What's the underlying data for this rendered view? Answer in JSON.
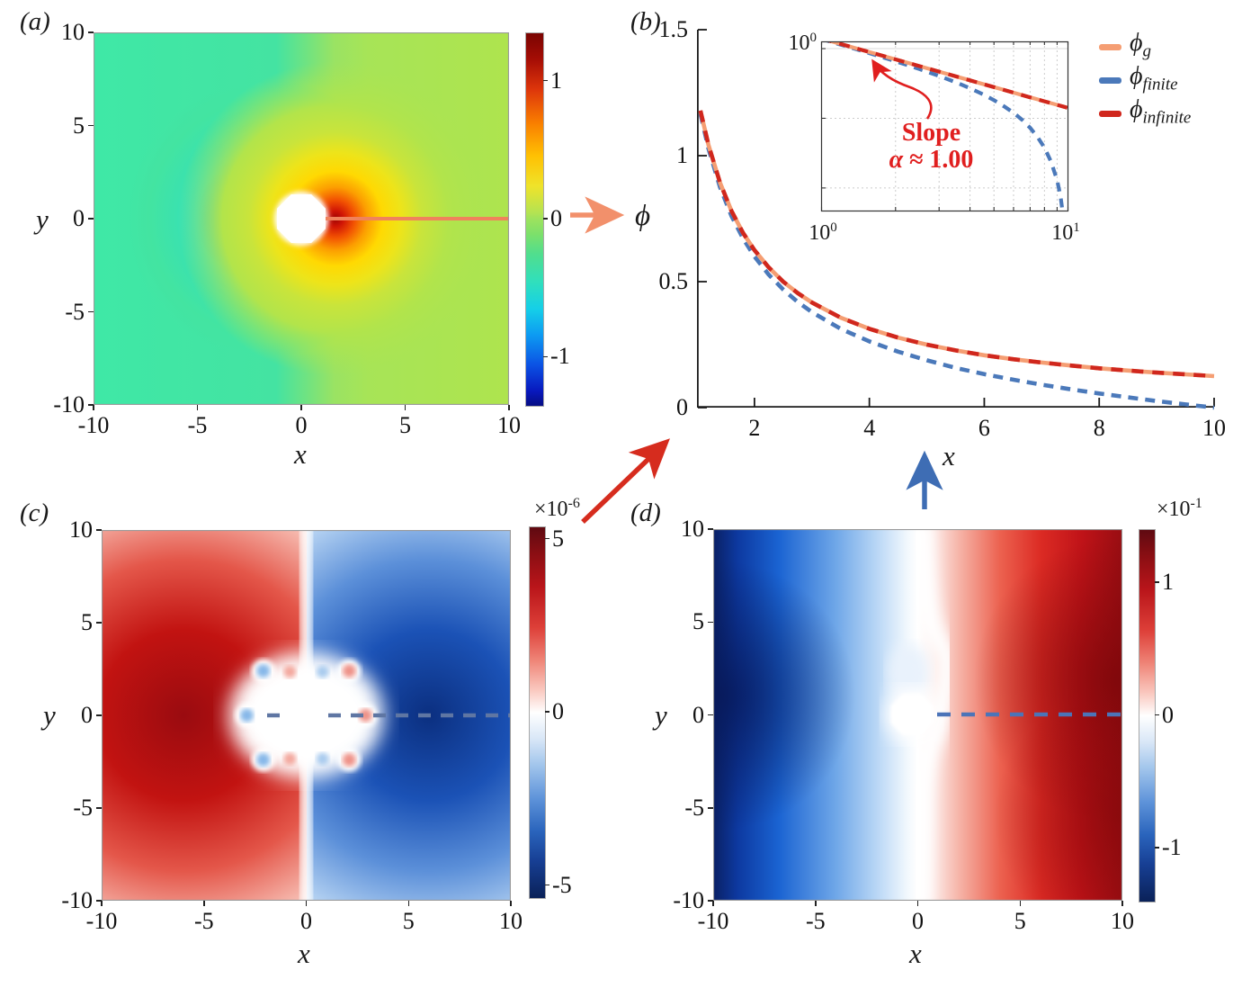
{
  "figure": {
    "arrows": [
      {
        "name": "colorbar-a-to-phi-b",
        "color": "#F2906B",
        "meaning": "profile along y=0 of panel (a) plotted as phi in panel (b)"
      },
      {
        "name": "panel-c-to-b",
        "color": "#D62C1E",
        "meaning": "dashed sample line of panel (c) relates to phi_infinite"
      },
      {
        "name": "panel-d-to-b",
        "color": "#3E6DB4",
        "meaning": "dashed sample line of panel (d) relates to phi_finite"
      },
      {
        "name": "slope-callout",
        "color": "#E01F1F",
        "meaning": "curved arrow pointing at power-law line in inset"
      }
    ]
  },
  "chart_data": [
    {
      "id": "a",
      "type": "heatmap",
      "panel_label": "(a)",
      "xlabel": "x",
      "ylabel": "y",
      "xlim": [
        -10,
        10
      ],
      "ylim": [
        -10,
        10
      ],
      "x_ticks": [
        -10,
        -5,
        0,
        5,
        10
      ],
      "y_ticks": [
        10,
        5,
        0,
        -5,
        -10
      ],
      "colormap": "jet",
      "colorbar_ticks": [
        1,
        0,
        -1
      ],
      "colorbar_lim": [
        -1.35,
        1.35
      ],
      "features": {
        "obstacle": "white octagon at origin, radius ~1.2",
        "sample_line": {
          "style": "solid",
          "color": "#F0825C",
          "y": 0,
          "x_from": 1,
          "x_to": 10
        },
        "field": "dipole-like potential: dark-blue negative lobe left of obstacle, red/yellow positive lobe right, green ~0 far field"
      }
    },
    {
      "id": "b",
      "type": "line",
      "panel_label": "(b)",
      "xlabel": "x",
      "ylabel": "ϕ",
      "xlim": [
        1,
        10
      ],
      "ylim": [
        0,
        1.5
      ],
      "x_ticks": [
        2,
        4,
        6,
        8,
        10
      ],
      "y_ticks": [
        0,
        0.5,
        1,
        1.5
      ],
      "grid": false,
      "legend_position": "top-right",
      "legend": [
        {
          "main": "ϕ",
          "sub": "g"
        },
        {
          "main": "ϕ",
          "sub": "finite"
        },
        {
          "main": "ϕ",
          "sub": "infinite"
        }
      ],
      "annotation": {
        "line1": "Slope",
        "alpha": "α",
        "approx": "≈ 1.00",
        "color": "#E01F1F"
      },
      "series": [
        {
          "name": "phi_g",
          "color": "#F59E73",
          "style": "solid",
          "x": [
            1.06,
            1.2,
            1.4,
            1.6,
            1.8,
            2,
            2.25,
            2.5,
            2.75,
            3,
            3.5,
            4,
            4.5,
            5,
            5.5,
            6,
            6.5,
            7,
            7.5,
            8,
            8.5,
            9,
            9.5,
            10
          ],
          "y": [
            1.179,
            1.042,
            0.893,
            0.781,
            0.694,
            0.625,
            0.556,
            0.5,
            0.455,
            0.417,
            0.357,
            0.313,
            0.278,
            0.25,
            0.227,
            0.208,
            0.192,
            0.179,
            0.167,
            0.156,
            0.147,
            0.139,
            0.132,
            0.125
          ]
        },
        {
          "name": "phi_finite",
          "color": "#4B79BA",
          "style": "dashed",
          "x": [
            1.06,
            1.2,
            1.4,
            1.6,
            1.8,
            2,
            2.25,
            2.5,
            2.75,
            3,
            3.5,
            4,
            4.5,
            5,
            5.5,
            6,
            6.5,
            7,
            7.5,
            8,
            8.5,
            9,
            9.5,
            10
          ],
          "y": [
            1.166,
            1.027,
            0.875,
            0.761,
            0.672,
            0.6,
            0.527,
            0.469,
            0.42,
            0.379,
            0.313,
            0.263,
            0.222,
            0.188,
            0.158,
            0.133,
            0.111,
            0.091,
            0.073,
            0.056,
            0.041,
            0.026,
            0.013,
            0.0
          ]
        },
        {
          "name": "phi_infinite",
          "color": "#D0271D",
          "style": "dashed",
          "x": [
            1.06,
            1.2,
            1.4,
            1.6,
            1.8,
            2,
            2.25,
            2.5,
            2.75,
            3,
            3.5,
            4,
            4.5,
            5,
            5.5,
            6,
            6.5,
            7,
            7.5,
            8,
            8.5,
            9,
            9.5,
            10
          ],
          "y": [
            1.179,
            1.042,
            0.893,
            0.781,
            0.694,
            0.625,
            0.556,
            0.5,
            0.455,
            0.417,
            0.357,
            0.313,
            0.278,
            0.25,
            0.227,
            0.208,
            0.192,
            0.179,
            0.167,
            0.156,
            0.147,
            0.139,
            0.132,
            0.125
          ]
        }
      ],
      "inset": {
        "type": "line",
        "x_scale": "log",
        "y_scale": "log",
        "xlim": [
          1,
          10
        ],
        "ylim": [
          0.0046,
          1.27
        ],
        "grid": true,
        "x_tick_labels": [
          {
            "base": "10",
            "exp": "0"
          },
          {
            "base": "10",
            "exp": "1"
          }
        ],
        "y_tick_labels": [
          {
            "base": "10",
            "exp": "0"
          }
        ],
        "series": [
          {
            "name": "phi_g",
            "color": "#F59E73",
            "style": "solid",
            "x": [
              1,
              1.5,
              2,
              2.5,
              3,
              3.5,
              4,
              4.5,
              5,
              5.5,
              6,
              6.5,
              7,
              7.5,
              8,
              8.5,
              9,
              9.3,
              9.6,
              9.8,
              9.9
            ],
            "y": [
              1.4,
              0.933,
              0.7,
              0.56,
              0.467,
              0.4,
              0.35,
              0.311,
              0.28,
              0.255,
              0.233,
              0.215,
              0.2,
              0.187,
              0.175,
              0.165,
              0.156,
              0.151,
              0.146,
              0.143,
              0.141
            ]
          },
          {
            "name": "phi_finite",
            "color": "#4B79BA",
            "style": "dashed",
            "x": [
              1,
              1.5,
              2,
              2.5,
              3,
              3.5,
              4,
              4.5,
              5,
              5.5,
              6,
              6.5,
              7,
              7.5,
              8,
              8.5,
              9,
              9.3,
              9.6,
              9.8,
              9.9
            ],
            "y": [
              1.379,
              0.902,
              0.658,
              0.508,
              0.405,
              0.329,
              0.27,
              0.222,
              0.182,
              0.148,
              0.12,
              0.095,
              0.073,
              0.054,
              0.038,
              0.024,
              0.013,
              0.0075,
              0.0032,
              0.0011,
              0.0004
            ]
          },
          {
            "name": "phi_infinite",
            "color": "#D0271D",
            "style": "dashed",
            "x": [
              1,
              1.5,
              2,
              2.5,
              3,
              3.5,
              4,
              4.5,
              5,
              5.5,
              6,
              6.5,
              7,
              7.5,
              8,
              8.5,
              9,
              9.3,
              9.6,
              9.8,
              9.9
            ],
            "y": [
              1.4,
              0.933,
              0.7,
              0.56,
              0.467,
              0.4,
              0.35,
              0.311,
              0.28,
              0.255,
              0.233,
              0.215,
              0.2,
              0.187,
              0.175,
              0.165,
              0.156,
              0.151,
              0.146,
              0.143,
              0.141
            ]
          }
        ]
      }
    },
    {
      "id": "c",
      "type": "heatmap",
      "panel_label": "(c)",
      "xlabel": "x",
      "ylabel": "y",
      "xlim": [
        -10,
        10
      ],
      "ylim": [
        -10,
        10
      ],
      "x_ticks": [
        -10,
        -5,
        0,
        5,
        10
      ],
      "y_ticks": [
        10,
        5,
        0,
        -5,
        -10
      ],
      "colormap": "red-white-blue diverging",
      "colorbar_scale": {
        "prefix": "×10",
        "exp": "-6"
      },
      "colorbar_ticks": [
        5,
        0,
        -5
      ],
      "colorbar_lim": [
        -5.35,
        5.35
      ],
      "features": {
        "obstacle": "white octagon at origin with white halo and small alternating red/blue blobs nearby",
        "sample_line": {
          "style": "dashed",
          "color": "#5F76A3",
          "y": 0,
          "x_from": 1,
          "x_to": 10
        },
        "field": "antisymmetric error field: positive (red) lobe peaking ~+5e-6 near (x=-6,y=0), negative (blue) lobe ~-5e-6 near (x=+6,y=0), white seam at x=0"
      }
    },
    {
      "id": "d",
      "type": "heatmap",
      "panel_label": "(d)",
      "xlabel": "x",
      "ylabel": "y",
      "xlim": [
        -10,
        10
      ],
      "ylim": [
        -10,
        10
      ],
      "x_ticks": [
        -10,
        -5,
        0,
        5,
        10
      ],
      "y_ticks": [
        10,
        5,
        0,
        -5,
        -10
      ],
      "colormap": "red-white-blue diverging",
      "colorbar_scale": {
        "prefix": "×10",
        "exp": "-1"
      },
      "colorbar_ticks": [
        1,
        0,
        -1
      ],
      "colorbar_lim": [
        -1.4,
        1.4
      ],
      "features": {
        "obstacle": "white octagon slightly left of origin",
        "sample_line": {
          "style": "dashed",
          "color": "#4C74B8",
          "y": 0,
          "x_from": 1,
          "x_to": 10
        },
        "field": "residual field: negative (blue) ~-1.4e-1 at left edge, positive (red) ~+1.4e-1 at right edge, curved white seam near x=0"
      }
    }
  ]
}
